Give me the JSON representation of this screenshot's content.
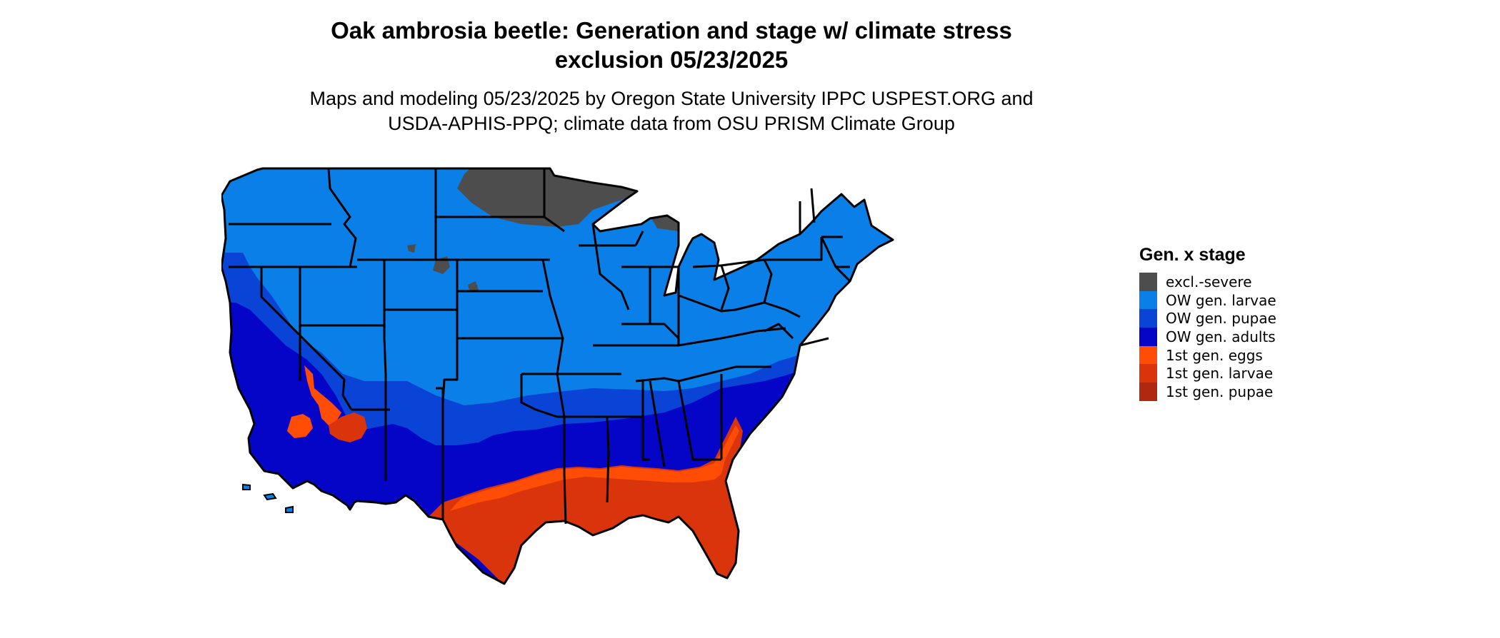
{
  "title_line1": "Oak ambrosia beetle: Generation and stage w/ climate stress",
  "title_line2": "exclusion 05/23/2025",
  "subtitle_line1": "Maps and modeling 05/23/2025 by Oregon State University IPPC USPEST.ORG and",
  "subtitle_line2": "USDA-APHIS-PPQ; climate data from OSU PRISM Climate Group",
  "legend": {
    "title": "Gen. x stage",
    "items": [
      {
        "label": "excl.-severe",
        "color": "#4d4d4d"
      },
      {
        "label": "OW gen. larvae",
        "color": "#0a7fe8"
      },
      {
        "label": "OW gen. pupae",
        "color": "#0a44d6"
      },
      {
        "label": "OW gen. adults",
        "color": "#0505c8"
      },
      {
        "label": "1st gen. eggs",
        "color": "#ff4d06"
      },
      {
        "label": "1st gen. larvae",
        "color": "#d9340c"
      },
      {
        "label": "1st gen. pupae",
        "color": "#b02810"
      }
    ]
  }
}
